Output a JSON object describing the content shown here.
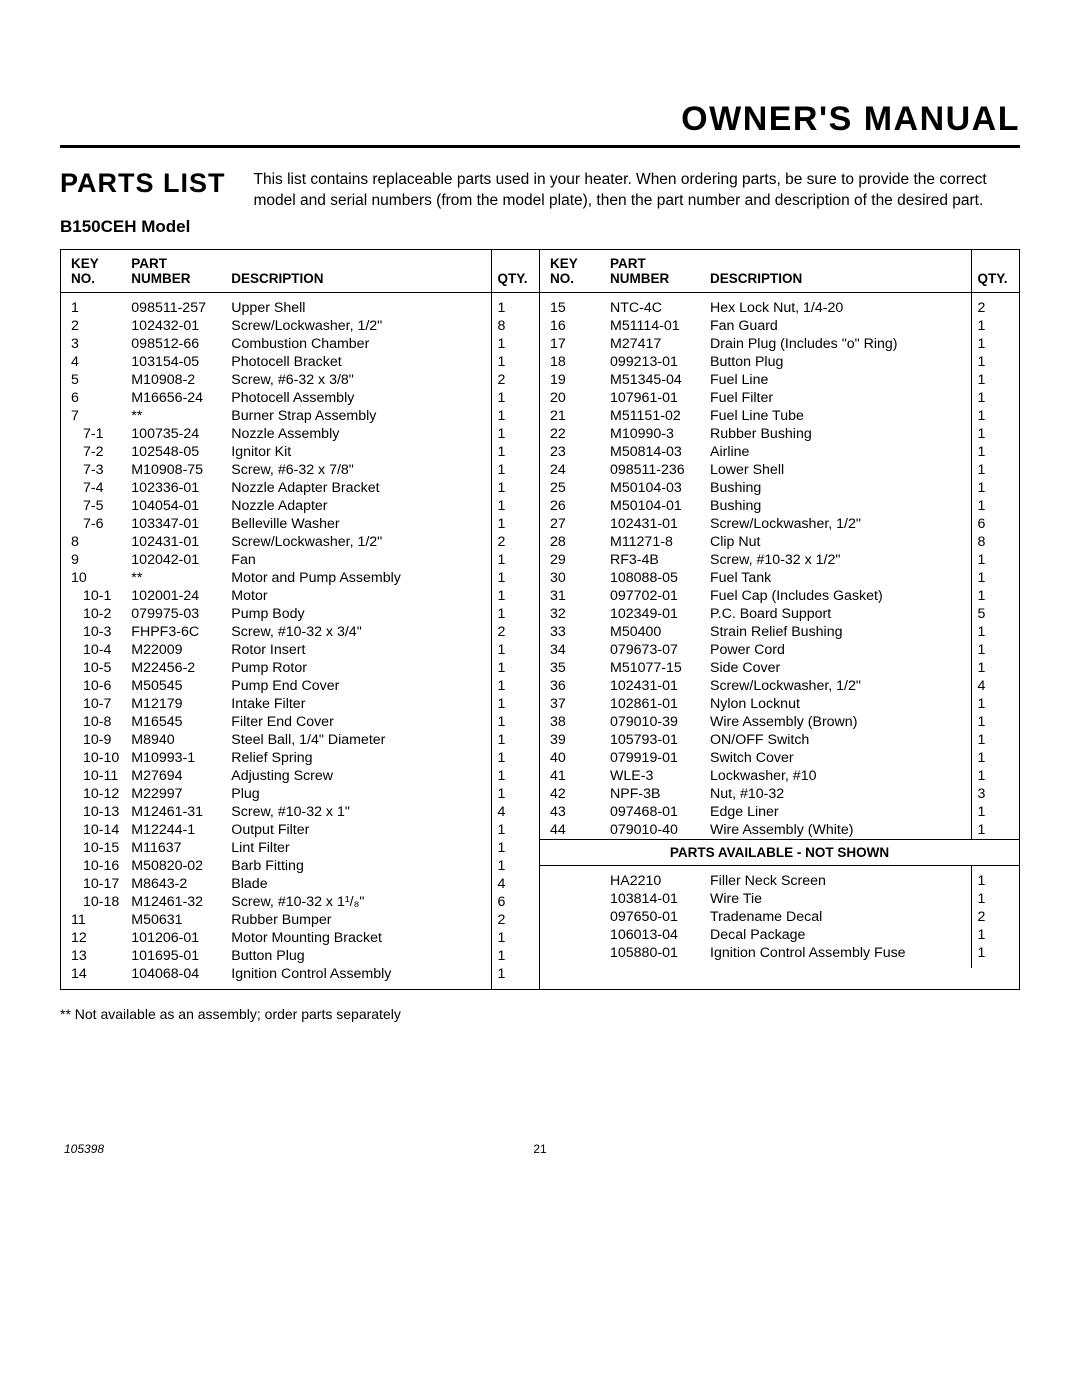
{
  "header": {
    "title": "OWNER'S MANUAL"
  },
  "section": {
    "title": "PARTS LIST",
    "model": "B150CEH Model",
    "intro": "This list contains replaceable parts used in your heater. When ordering parts, be sure to provide the correct model and serial numbers (from the model plate), then the part number and description of the desired part."
  },
  "columns": {
    "key1": "KEY",
    "key2": "NO.",
    "part1": "PART",
    "part2": "NUMBER",
    "desc": "DESCRIPTION",
    "qty": "QTY."
  },
  "parts_not_shown_label": "PARTS AVAILABLE - NOT SHOWN",
  "left_rows": [
    {
      "k": "1",
      "p": "098511-257",
      "d": "Upper Shell",
      "q": "1"
    },
    {
      "k": "2",
      "p": "102432-01",
      "d": "Screw/Lockwasher, 1/2\"",
      "q": "8"
    },
    {
      "k": "3",
      "p": "098512-66",
      "d": "Combustion Chamber",
      "q": "1"
    },
    {
      "k": "4",
      "p": "103154-05",
      "d": "Photocell Bracket",
      "q": "1"
    },
    {
      "k": "5",
      "p": "M10908-2",
      "d": "Screw, #6-32 x 3/8\"",
      "q": "2"
    },
    {
      "k": "6",
      "p": "M16656-24",
      "d": "Photocell Assembly",
      "q": "1"
    },
    {
      "k": "7",
      "p": "**",
      "d": "Burner Strap Assembly",
      "q": "1"
    },
    {
      "k": "7-1",
      "p": "100735-24",
      "d": "Nozzle Assembly",
      "q": "1",
      "i": true
    },
    {
      "k": "7-2",
      "p": "102548-05",
      "d": "Ignitor Kit",
      "q": "1",
      "i": true
    },
    {
      "k": "7-3",
      "p": "M10908-75",
      "d": "Screw, #6-32 x 7/8\"",
      "q": "1",
      "i": true
    },
    {
      "k": "7-4",
      "p": "102336-01",
      "d": "Nozzle Adapter Bracket",
      "q": "1",
      "i": true
    },
    {
      "k": "7-5",
      "p": "104054-01",
      "d": "Nozzle Adapter",
      "q": "1",
      "i": true
    },
    {
      "k": "7-6",
      "p": "103347-01",
      "d": "Belleville Washer",
      "q": "1",
      "i": true
    },
    {
      "k": "8",
      "p": "102431-01",
      "d": "Screw/Lockwasher, 1/2\"",
      "q": "2"
    },
    {
      "k": "9",
      "p": "102042-01",
      "d": "Fan",
      "q": "1"
    },
    {
      "k": "10",
      "p": "**",
      "d": "Motor and Pump Assembly",
      "q": "1"
    },
    {
      "k": "10-1",
      "p": "102001-24",
      "d": "Motor",
      "q": "1",
      "i": true
    },
    {
      "k": "10-2",
      "p": "079975-03",
      "d": "Pump Body",
      "q": "1",
      "i": true
    },
    {
      "k": "10-3",
      "p": "FHPF3-6C",
      "d": "Screw, #10-32 x 3/4\"",
      "q": "2",
      "i": true
    },
    {
      "k": "10-4",
      "p": "M22009",
      "d": "Rotor Insert",
      "q": "1",
      "i": true
    },
    {
      "k": "10-5",
      "p": "M22456-2",
      "d": "Pump Rotor",
      "q": "1",
      "i": true
    },
    {
      "k": "10-6",
      "p": "M50545",
      "d": "Pump End Cover",
      "q": "1",
      "i": true
    },
    {
      "k": "10-7",
      "p": "M12179",
      "d": "Intake Filter",
      "q": "1",
      "i": true
    },
    {
      "k": "10-8",
      "p": "M16545",
      "d": "Filter End Cover",
      "q": "1",
      "i": true
    },
    {
      "k": "10-9",
      "p": "M8940",
      "d": "Steel Ball, 1/4\" Diameter",
      "q": "1",
      "i": true
    },
    {
      "k": "10-10",
      "p": "M10993-1",
      "d": "Relief Spring",
      "q": "1",
      "i": true
    },
    {
      "k": "10-11",
      "p": "M27694",
      "d": "Adjusting Screw",
      "q": "1",
      "i": true
    },
    {
      "k": "10-12",
      "p": "M22997",
      "d": "Plug",
      "q": "1",
      "i": true
    },
    {
      "k": "10-13",
      "p": "M12461-31",
      "d": "Screw, #10-32 x 1\"",
      "q": "4",
      "i": true
    },
    {
      "k": "10-14",
      "p": "M12244-1",
      "d": "Output Filter",
      "q": "1",
      "i": true
    },
    {
      "k": "10-15",
      "p": "M11637",
      "d": "Lint Filter",
      "q": "1",
      "i": true
    },
    {
      "k": "10-16",
      "p": "M50820-02",
      "d": "Barb Fitting",
      "q": "1",
      "i": true
    },
    {
      "k": "10-17",
      "p": "M8643-2",
      "d": "Blade",
      "q": "4",
      "i": true
    },
    {
      "k": "10-18",
      "p": "M12461-32",
      "d": "Screw, #10-32 x 1¹/₈\"",
      "q": "6",
      "i": true
    },
    {
      "k": "11",
      "p": "M50631",
      "d": "Rubber Bumper",
      "q": "2"
    },
    {
      "k": "12",
      "p": "101206-01",
      "d": "Motor Mounting Bracket",
      "q": "1"
    },
    {
      "k": "13",
      "p": "101695-01",
      "d": "Button Plug",
      "q": "1"
    },
    {
      "k": "14",
      "p": "104068-04",
      "d": "Ignition Control Assembly",
      "q": "1"
    }
  ],
  "right_rows": [
    {
      "k": "15",
      "p": "NTC-4C",
      "d": "Hex Lock Nut, 1/4-20",
      "q": "2"
    },
    {
      "k": "16",
      "p": "M51114-01",
      "d": "Fan Guard",
      "q": "1"
    },
    {
      "k": "17",
      "p": "M27417",
      "d": "Drain Plug (Includes \"o\" Ring)",
      "q": "1"
    },
    {
      "k": "18",
      "p": "099213-01",
      "d": "Button Plug",
      "q": "1"
    },
    {
      "k": "19",
      "p": "M51345-04",
      "d": "Fuel Line",
      "q": "1"
    },
    {
      "k": "20",
      "p": "107961-01",
      "d": "Fuel Filter",
      "q": "1"
    },
    {
      "k": "21",
      "p": "M51151-02",
      "d": "Fuel Line Tube",
      "q": "1"
    },
    {
      "k": "22",
      "p": "M10990-3",
      "d": "Rubber Bushing",
      "q": "1"
    },
    {
      "k": "23",
      "p": "M50814-03",
      "d": "Airline",
      "q": "1"
    },
    {
      "k": "24",
      "p": "098511-236",
      "d": "Lower Shell",
      "q": "1"
    },
    {
      "k": "25",
      "p": "M50104-03",
      "d": "Bushing",
      "q": "1"
    },
    {
      "k": "26",
      "p": "M50104-01",
      "d": "Bushing",
      "q": "1"
    },
    {
      "k": "27",
      "p": "102431-01",
      "d": "Screw/Lockwasher, 1/2\"",
      "q": "6"
    },
    {
      "k": "28",
      "p": "M11271-8",
      "d": "Clip Nut",
      "q": "8"
    },
    {
      "k": "29",
      "p": "RF3-4B",
      "d": "Screw, #10-32 x 1/2\"",
      "q": "1"
    },
    {
      "k": "30",
      "p": "108088-05",
      "d": "Fuel Tank",
      "q": "1"
    },
    {
      "k": "31",
      "p": "097702-01",
      "d": "Fuel Cap (Includes Gasket)",
      "q": "1"
    },
    {
      "k": "32",
      "p": "102349-01",
      "d": "P.C. Board Support",
      "q": "5"
    },
    {
      "k": "33",
      "p": "M50400",
      "d": "Strain Relief Bushing",
      "q": "1"
    },
    {
      "k": "34",
      "p": "079673-07",
      "d": "Power Cord",
      "q": "1"
    },
    {
      "k": "35",
      "p": "M51077-15",
      "d": "Side Cover",
      "q": "1"
    },
    {
      "k": "36",
      "p": "102431-01",
      "d": "Screw/Lockwasher, 1/2\"",
      "q": "4"
    },
    {
      "k": "37",
      "p": "102861-01",
      "d": "Nylon Locknut",
      "q": "1"
    },
    {
      "k": "38",
      "p": "079010-39",
      "d": "Wire Assembly (Brown)",
      "q": "1"
    },
    {
      "k": "39",
      "p": "105793-01",
      "d": "ON/OFF Switch",
      "q": "1"
    },
    {
      "k": "40",
      "p": "079919-01",
      "d": "Switch Cover",
      "q": "1"
    },
    {
      "k": "41",
      "p": "WLE-3",
      "d": "Lockwasher, #10",
      "q": "1"
    },
    {
      "k": "42",
      "p": "NPF-3B",
      "d": "Nut, #10-32",
      "q": "3"
    },
    {
      "k": "43",
      "p": "097468-01",
      "d": "Edge Liner",
      "q": "1"
    },
    {
      "k": "44",
      "p": "079010-40",
      "d": "Wire Assembly (White)",
      "q": "1"
    }
  ],
  "not_shown_rows": [
    {
      "k": "",
      "p": "HA2210",
      "d": "Filler Neck Screen",
      "q": "1"
    },
    {
      "k": "",
      "p": "103814-01",
      "d": "Wire Tie",
      "q": "1"
    },
    {
      "k": "",
      "p": "097650-01",
      "d": "Tradename Decal",
      "q": "2"
    },
    {
      "k": "",
      "p": "106013-04",
      "d": "Decal Package",
      "q": "1"
    },
    {
      "k": "",
      "p": "105880-01",
      "d": "Ignition Control Assembly Fuse",
      "q": "1"
    }
  ],
  "footnote": "**   Not available as an assembly; order parts  separately",
  "footer": {
    "docnum": "105398",
    "page": "21"
  }
}
